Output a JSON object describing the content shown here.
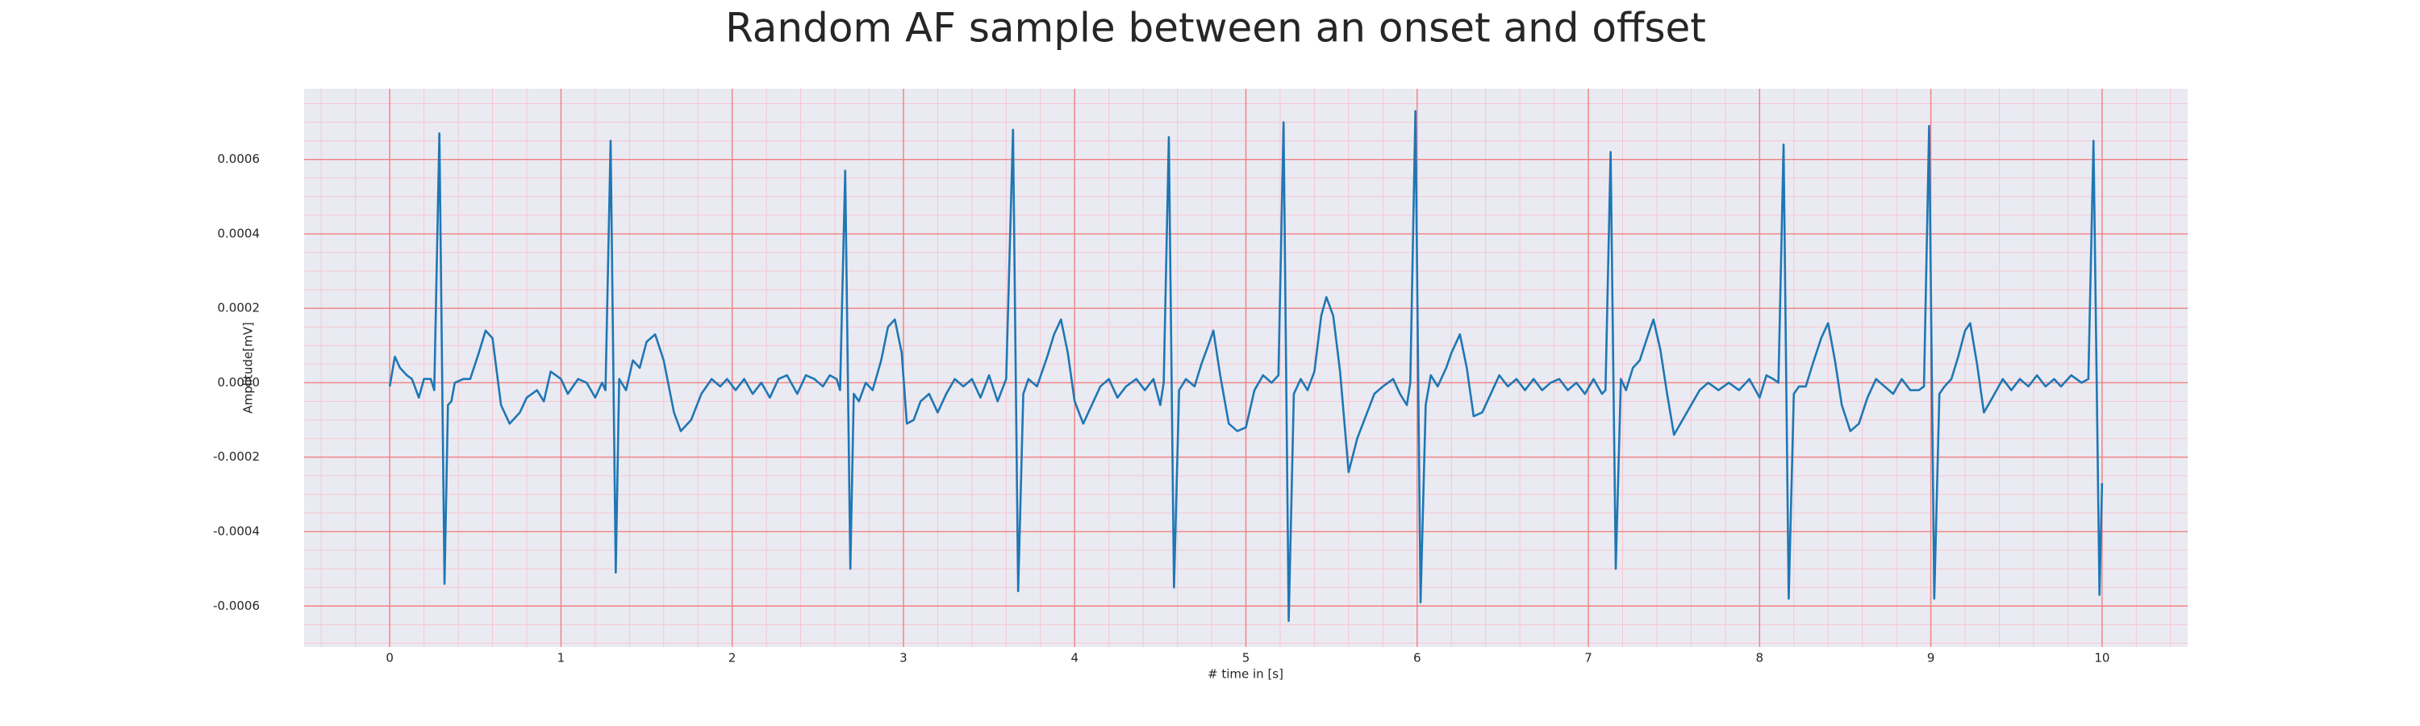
{
  "chart_data": {
    "type": "line",
    "title": "Random AF sample between an onset and offset",
    "xlabel": "# time in [s]",
    "ylabel": "Amplitude[mV]",
    "color": "#1f77b4",
    "grid": true,
    "xlim": [
      -0.5,
      10.5
    ],
    "ylim": [
      -0.00071,
      0.00079
    ],
    "xticks": [
      0,
      1,
      2,
      3,
      4,
      5,
      6,
      7,
      8,
      9,
      10
    ],
    "yticks": [
      {
        "value": -0.0006,
        "label": "-0.0006"
      },
      {
        "value": -0.0004,
        "label": "-0.0004"
      },
      {
        "value": -0.0002,
        "label": "-0.0002"
      },
      {
        "value": 0,
        "label": "0.0000"
      },
      {
        "value": 0.0002,
        "label": "0.0002"
      },
      {
        "value": 0.0004,
        "label": "0.0004"
      },
      {
        "value": 0.0006,
        "label": "0.0006"
      }
    ],
    "xminorticks": [
      -0.4,
      -0.2,
      0.2,
      0.4,
      0.6,
      0.8,
      1.2,
      1.4,
      1.6,
      1.8,
      2.2,
      2.4,
      2.6,
      2.8,
      3.2,
      3.4,
      3.6,
      3.8,
      4.2,
      4.4,
      4.6,
      4.8,
      5.2,
      5.4,
      5.6,
      5.8,
      6.2,
      6.4,
      6.6,
      6.8,
      7.2,
      7.4,
      7.6,
      7.8,
      8.2,
      8.4,
      8.6,
      8.8,
      9.2,
      9.4,
      9.6,
      9.8,
      10.2,
      10.4
    ],
    "yminorticks": [
      -0.0007,
      -0.00065,
      -0.00055,
      -0.0005,
      -0.00045,
      -0.00035,
      -0.0003,
      -0.00025,
      -0.00015,
      -0.0001,
      -5e-05,
      5e-05,
      0.0001,
      0.00015,
      0.00025,
      0.0003,
      0.00035,
      0.00045,
      0.0005,
      0.00055,
      0.00065,
      0.0007,
      0.00075
    ],
    "x": [
      0,
      0.03,
      0.06,
      0.1,
      0.13,
      0.17,
      0.2,
      0.24,
      0.26,
      0.29,
      0.32,
      0.34,
      0.36,
      0.38,
      0.43,
      0.47,
      0.52,
      0.56,
      0.6,
      0.65,
      0.7,
      0.76,
      0.8,
      0.86,
      0.9,
      0.94,
      1.0,
      1.04,
      1.1,
      1.15,
      1.2,
      1.24,
      1.26,
      1.29,
      1.32,
      1.34,
      1.38,
      1.42,
      1.46,
      1.5,
      1.55,
      1.6,
      1.66,
      1.7,
      1.76,
      1.82,
      1.88,
      1.93,
      1.97,
      2.02,
      2.07,
      2.12,
      2.17,
      2.22,
      2.27,
      2.32,
      2.38,
      2.43,
      2.48,
      2.53,
      2.57,
      2.61,
      2.63,
      2.66,
      2.69,
      2.71,
      2.74,
      2.78,
      2.82,
      2.87,
      2.91,
      2.95,
      2.99,
      3.02,
      3.06,
      3.1,
      3.15,
      3.2,
      3.25,
      3.3,
      3.35,
      3.4,
      3.45,
      3.5,
      3.55,
      3.6,
      3.64,
      3.67,
      3.7,
      3.73,
      3.78,
      3.84,
      3.88,
      3.92,
      3.96,
      4.0,
      4.05,
      4.1,
      4.15,
      4.2,
      4.25,
      4.3,
      4.36,
      4.41,
      4.46,
      4.5,
      4.52,
      4.55,
      4.58,
      4.61,
      4.65,
      4.7,
      4.74,
      4.78,
      4.81,
      4.85,
      4.9,
      4.95,
      5.0,
      5.05,
      5.1,
      5.15,
      5.19,
      5.22,
      5.25,
      5.28,
      5.32,
      5.36,
      5.4,
      5.44,
      5.47,
      5.51,
      5.55,
      5.6,
      5.65,
      5.7,
      5.75,
      5.8,
      5.86,
      5.9,
      5.94,
      5.96,
      5.99,
      6.02,
      6.05,
      6.08,
      6.12,
      6.17,
      6.2,
      6.25,
      6.29,
      6.33,
      6.38,
      6.43,
      6.48,
      6.53,
      6.58,
      6.63,
      6.68,
      6.73,
      6.78,
      6.83,
      6.88,
      6.93,
      6.98,
      7.03,
      7.08,
      7.1,
      7.13,
      7.16,
      7.19,
      7.22,
      7.26,
      7.3,
      7.35,
      7.38,
      7.42,
      7.46,
      7.5,
      7.55,
      7.6,
      7.65,
      7.7,
      7.76,
      7.82,
      7.88,
      7.94,
      8.0,
      8.04,
      8.08,
      8.11,
      8.14,
      8.17,
      8.2,
      8.23,
      8.27,
      8.31,
      8.36,
      8.4,
      8.44,
      8.48,
      8.53,
      8.58,
      8.63,
      8.68,
      8.73,
      8.78,
      8.83,
      8.88,
      8.93,
      8.96,
      8.99,
      9.02,
      9.05,
      9.08,
      9.12,
      9.16,
      9.2,
      9.23,
      9.27,
      9.31,
      9.36,
      9.42,
      9.47,
      9.52,
      9.57,
      9.62,
      9.67,
      9.72,
      9.76,
      9.82,
      9.88,
      9.92,
      9.95,
      9.985,
      10.0
    ],
    "values": [
      -1e-05,
      7e-05,
      4e-05,
      2e-05,
      1e-05,
      -4e-05,
      1e-05,
      1e-05,
      -2e-05,
      0.00067,
      -0.00054,
      -6e-05,
      -5e-05,
      0,
      1e-05,
      1e-05,
      8e-05,
      0.00014,
      0.00012,
      -6e-05,
      -0.00011,
      -8e-05,
      -4e-05,
      -2e-05,
      -5e-05,
      3e-05,
      1e-05,
      -3e-05,
      1e-05,
      0,
      -4e-05,
      0,
      -2e-05,
      0.00065,
      -0.00051,
      1e-05,
      -2e-05,
      6e-05,
      4e-05,
      0.00011,
      0.00013,
      6e-05,
      -8e-05,
      -0.00013,
      -0.0001,
      -3e-05,
      1e-05,
      -1e-05,
      1e-05,
      -2e-05,
      1e-05,
      -3e-05,
      0,
      -4e-05,
      1e-05,
      2e-05,
      -3e-05,
      2e-05,
      1e-05,
      -1e-05,
      2e-05,
      1e-05,
      -2e-05,
      0.00057,
      -0.0005,
      -3e-05,
      -5e-05,
      0,
      -2e-05,
      6e-05,
      0.00015,
      0.00017,
      8e-05,
      -0.00011,
      -0.0001,
      -5e-05,
      -3e-05,
      -8e-05,
      -3e-05,
      1e-05,
      -1e-05,
      1e-05,
      -4e-05,
      2e-05,
      -5e-05,
      1e-05,
      0.00068,
      -0.00056,
      -3e-05,
      1e-05,
      -1e-05,
      7e-05,
      0.00013,
      0.00017,
      8e-05,
      -5e-05,
      -0.00011,
      -6e-05,
      -1e-05,
      1e-05,
      -4e-05,
      -1e-05,
      1e-05,
      -2e-05,
      1e-05,
      -6e-05,
      0,
      0.00066,
      -0.00055,
      -2e-05,
      1e-05,
      -1e-05,
      5e-05,
      0.0001,
      0.00014,
      2e-05,
      -0.00011,
      -0.00013,
      -0.00012,
      -2e-05,
      2e-05,
      0,
      2e-05,
      0.0007,
      -0.00064,
      -3e-05,
      1e-05,
      -2e-05,
      3e-05,
      0.00018,
      0.00023,
      0.00018,
      3e-05,
      -0.00024,
      -0.00015,
      -9e-05,
      -3e-05,
      -1e-05,
      1e-05,
      -3e-05,
      -6e-05,
      0,
      0.00073,
      -0.00059,
      -6e-05,
      2e-05,
      -1e-05,
      4e-05,
      8e-05,
      0.00013,
      4e-05,
      -9e-05,
      -8e-05,
      -3e-05,
      2e-05,
      -1e-05,
      1e-05,
      -2e-05,
      1e-05,
      -2e-05,
      0,
      1e-05,
      -2e-05,
      0,
      -3e-05,
      1e-05,
      -3e-05,
      -2e-05,
      0.00062,
      -0.0005,
      1e-05,
      -2e-05,
      4e-05,
      6e-05,
      0.00013,
      0.00017,
      9e-05,
      -3e-05,
      -0.00014,
      -0.0001,
      -6e-05,
      -2e-05,
      0,
      -2e-05,
      0,
      -2e-05,
      1e-05,
      -4e-05,
      2e-05,
      1e-05,
      0,
      0.00064,
      -0.00058,
      -3e-05,
      -1e-05,
      -1e-05,
      5e-05,
      0.00012,
      0.00016,
      6e-05,
      -6e-05,
      -0.00013,
      -0.00011,
      -4e-05,
      1e-05,
      -1e-05,
      -3e-05,
      1e-05,
      -2e-05,
      -2e-05,
      -1e-05,
      0.00069,
      -0.00058,
      -3e-05,
      -1e-05,
      1e-05,
      7e-05,
      0.00014,
      0.00016,
      5e-05,
      -8e-05,
      -4e-05,
      1e-05,
      -2e-05,
      1e-05,
      -1e-05,
      2e-05,
      -1e-05,
      1e-05,
      -1e-05,
      2e-05,
      0,
      1e-05,
      0.00065,
      -0.00057,
      -0.00027
    ]
  }
}
